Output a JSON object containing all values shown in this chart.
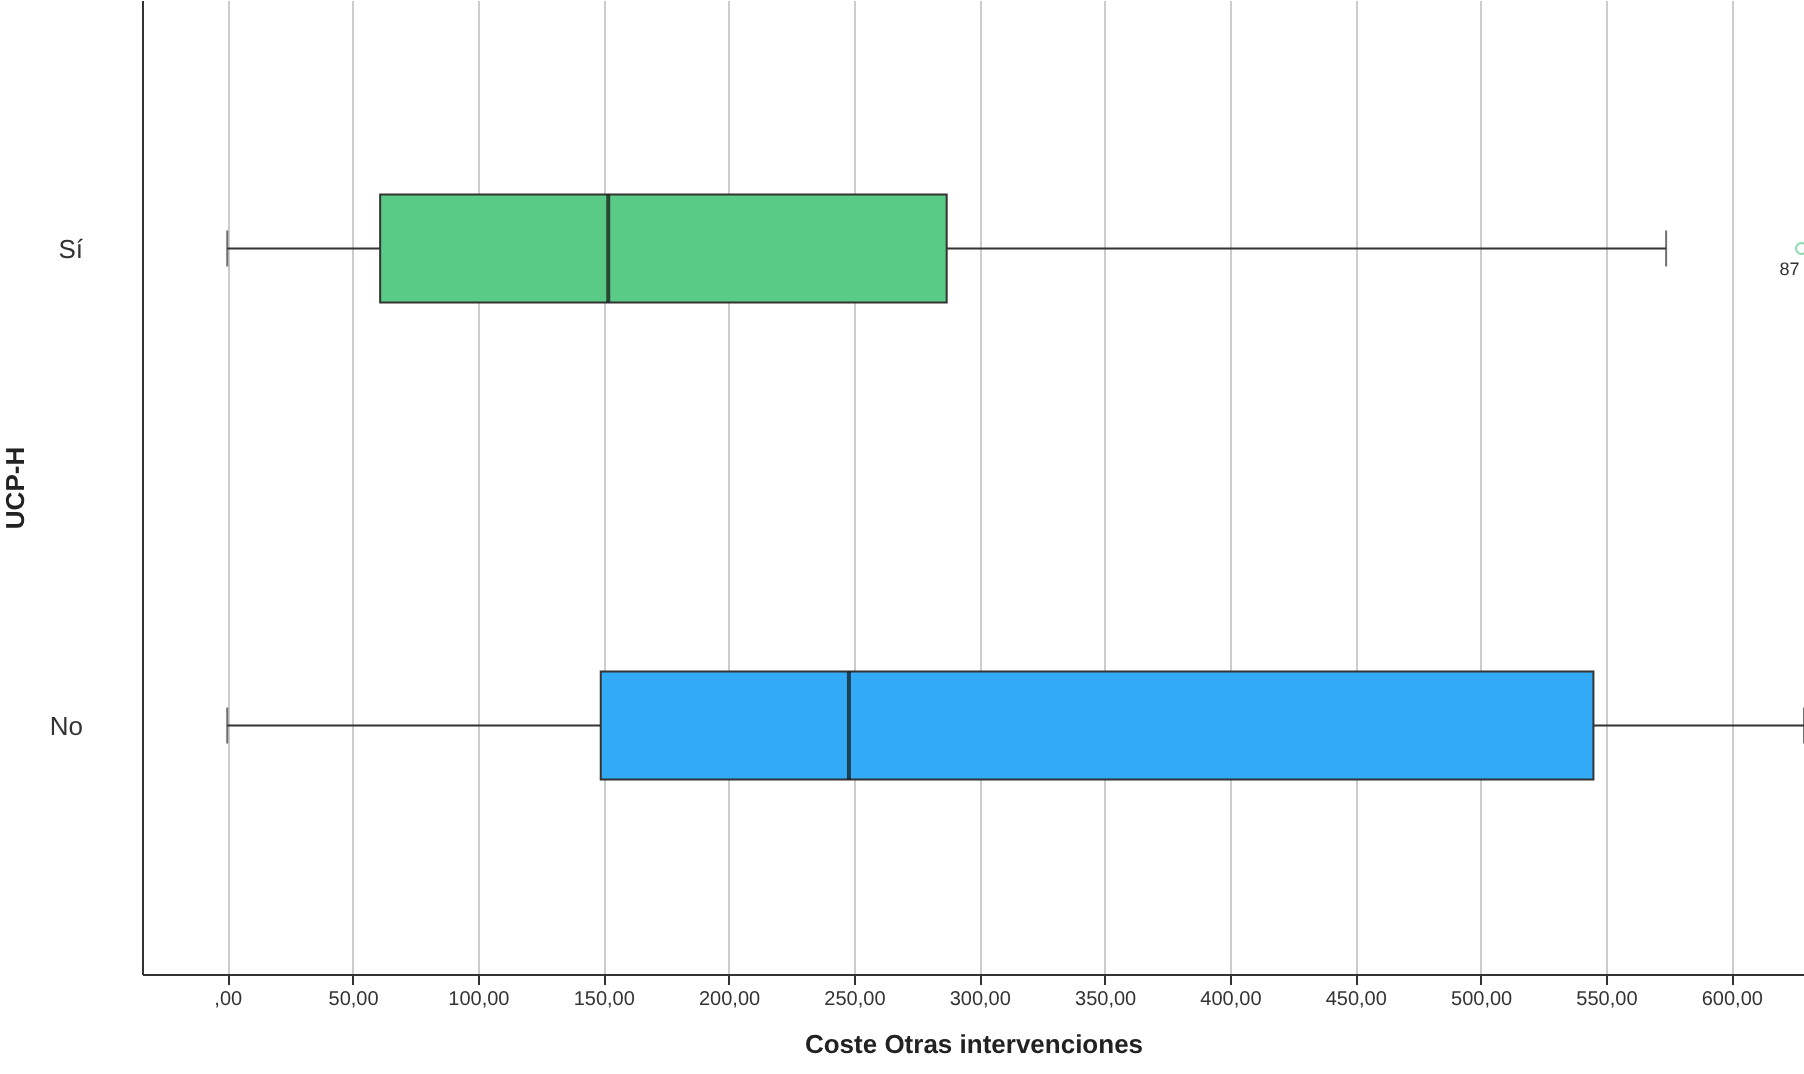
{
  "chart_data": {
    "type": "box",
    "orientation": "horizontal",
    "xlabel": "Coste Otras intervenciones",
    "ylabel": "UCP-H",
    "categories": [
      "Sí",
      "No"
    ],
    "boxes": [
      {
        "low": 0,
        "q1": 61,
        "median": 152,
        "q3": 287,
        "high": 574,
        "outliers": [
          628
        ]
      },
      {
        "low": 0,
        "q1": 149,
        "median": 248,
        "q3": 545,
        "high": 629
      }
    ],
    "colors": [
      "#5acb87",
      "#33aaf5"
    ],
    "xlim": [
      -34,
      629
    ],
    "xticks": [
      {
        "value": 0,
        "label": ",00"
      },
      {
        "value": 50,
        "label": "50,00"
      },
      {
        "value": 100,
        "label": "100,00"
      },
      {
        "value": 150,
        "label": "150,00"
      },
      {
        "value": 200,
        "label": "200,00"
      },
      {
        "value": 250,
        "label": "250,00"
      },
      {
        "value": 300,
        "label": "300,00"
      },
      {
        "value": 350,
        "label": "350,00"
      },
      {
        "value": 400,
        "label": "400,00"
      },
      {
        "value": 450,
        "label": "450,00"
      },
      {
        "value": 500,
        "label": "500,00"
      },
      {
        "value": 550,
        "label": "550,00"
      },
      {
        "value": 600,
        "label": "600,00"
      }
    ],
    "annotations": [
      "87"
    ],
    "grid": "x"
  }
}
